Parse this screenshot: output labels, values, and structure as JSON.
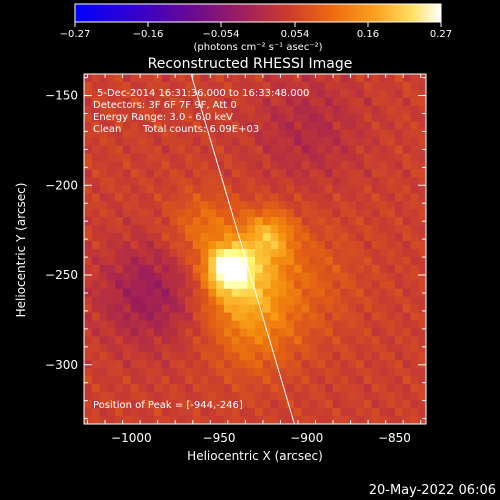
{
  "colorbar": {
    "ticks": [
      "−0.27",
      "−0.16",
      "−0.054",
      "0.054",
      "0.16",
      "0.27"
    ],
    "units_text": "(photons cm⁻² s⁻¹ asec⁻²)",
    "range": [
      -0.27,
      0.27
    ]
  },
  "chart_data": {
    "type": "heatmap",
    "title": "Reconstructed RHESSI Image",
    "xlabel": "Heliocentric X (arcsec)",
    "ylabel": "Heliocentric Y (arcsec)",
    "xlim": [
      -1027,
      -832
    ],
    "ylim": [
      -333,
      -138
    ],
    "xticks": [
      -1000,
      -950,
      -900,
      -850
    ],
    "yticks": [
      -150,
      -200,
      -250,
      -300
    ],
    "xtick_labels": [
      "−1000",
      "−950",
      "−900",
      "−850"
    ],
    "ytick_labels": [
      "−150",
      "−200",
      "−250",
      "−300"
    ],
    "peak": [
      -944,
      -246
    ],
    "limb_line": [
      [
        -966,
        -138
      ],
      [
        -907,
        -333
      ]
    ],
    "colormap": [
      "#1a00ff",
      "#4e00a0",
      "#7a0f73",
      "#9e1e58",
      "#c63a32",
      "#e35e14",
      "#f58f0c",
      "#fdc63a",
      "#ffff80",
      "#ffffff"
    ],
    "sources": [
      {
        "x": -944,
        "y": -246,
        "amp": 0.27,
        "sigma": 7
      },
      {
        "x": -938,
        "y": -253,
        "amp": 0.14,
        "sigma": 15
      },
      {
        "x": -922,
        "y": -228,
        "amp": 0.12,
        "sigma": 10
      },
      {
        "x": -958,
        "y": -224,
        "amp": 0.07,
        "sigma": 14
      },
      {
        "x": -930,
        "y": -282,
        "amp": 0.07,
        "sigma": 18
      },
      {
        "x": -905,
        "y": -252,
        "amp": 0.05,
        "sigma": 22
      },
      {
        "x": -990,
        "y": -260,
        "amp": -0.07,
        "sigma": 20
      },
      {
        "x": -900,
        "y": -168,
        "amp": -0.04,
        "sigma": 22
      }
    ]
  },
  "annotations": {
    "time_range": "5-Dec-2014 16:31:36.000 to 16:33:48.000",
    "detectors": "Detectors: 3F 6F 7F 9F, Att 0",
    "energy": "Energy Range: 3.0 - 6.0 keV",
    "clean_label": "Clean",
    "total_counts": "Total counts: 6.09E+03",
    "peak_position": "Position of Peak = [-944,-246]"
  },
  "footer": {
    "date": "20-May-2022 06:06"
  }
}
